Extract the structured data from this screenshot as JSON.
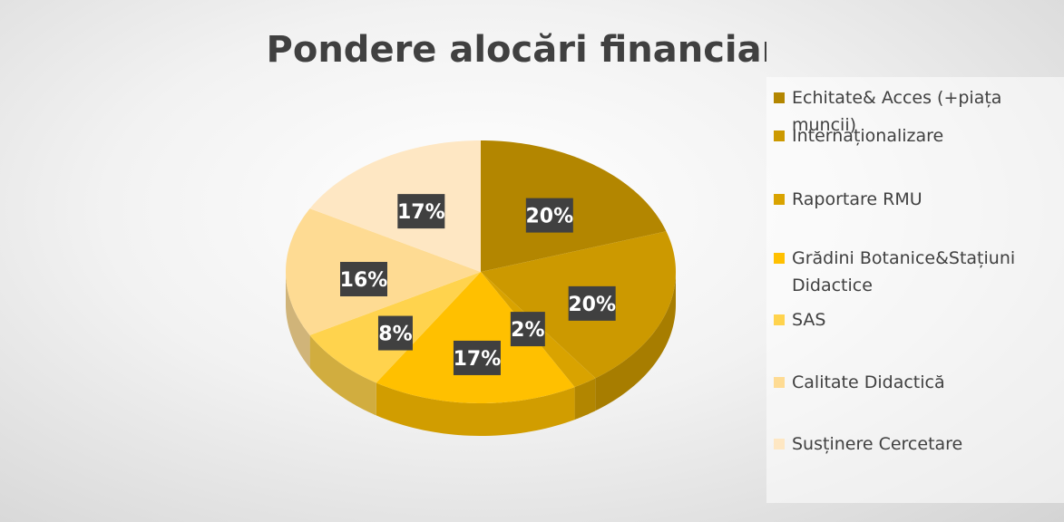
{
  "chart_data": {
    "type": "pie3d",
    "title": "Pondere alocări financiare",
    "categories": [
      "Echitate& Acces (+piața muncii)",
      "Internaționalizare",
      "Raportare RMU",
      "Grădini Botanice&Stațiuni Didactice",
      "SAS",
      "Calitate Didactică",
      "Susținere Cercetare"
    ],
    "values": [
      20,
      20,
      2,
      17,
      8,
      16,
      17
    ],
    "value_labels": [
      "20%",
      "20%",
      "2%",
      "17%",
      "8%",
      "16%",
      "17%"
    ],
    "colors": [
      "#b38600",
      "#cc9900",
      "#d9a300",
      "#ffc000",
      "#ffd34d",
      "#fedb93",
      "#fee7c3"
    ],
    "legend": "right"
  }
}
